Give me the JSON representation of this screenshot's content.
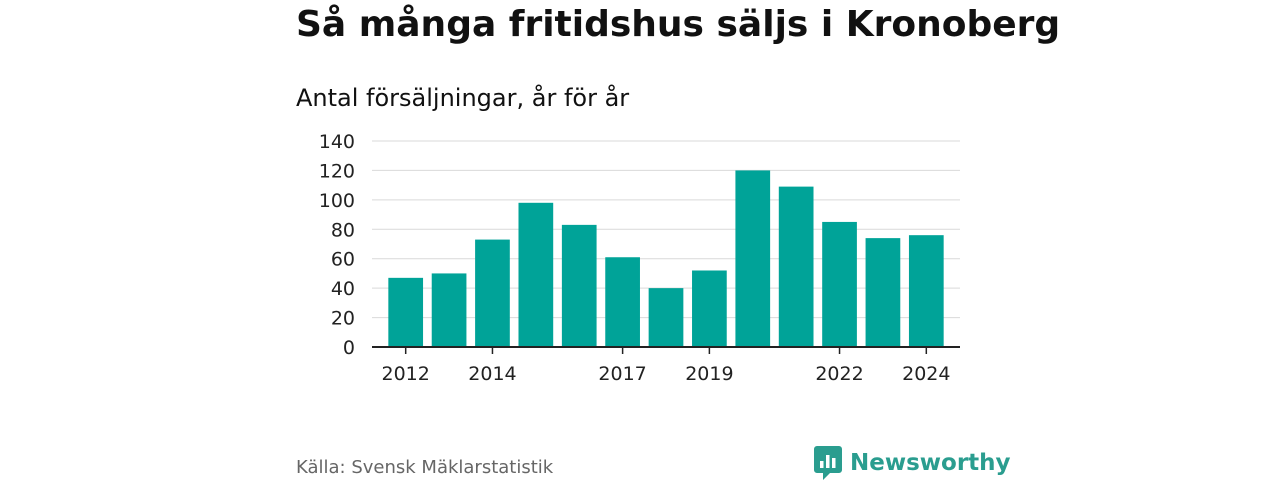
{
  "title": "Så många fritidshus säljs i Kronoberg",
  "chart_data": {
    "type": "bar",
    "title": "Så många fritidshus säljs i Kronoberg",
    "subtitle": "Antal försäljningar, år för år",
    "categories": [
      "2012",
      "2013",
      "2014",
      "2015",
      "2016",
      "2017",
      "2018",
      "2019",
      "2020",
      "2021",
      "2022",
      "2023",
      "2024"
    ],
    "x_tick_labels": [
      "2012",
      "2014",
      "2017",
      "2019",
      "2022",
      "2024"
    ],
    "values": [
      47,
      50,
      73,
      98,
      83,
      61,
      40,
      52,
      120,
      109,
      85,
      74,
      76
    ],
    "ylim": [
      0,
      140
    ],
    "y_ticks": [
      "0",
      "20",
      "40",
      "60",
      "80",
      "100",
      "120",
      "140"
    ],
    "xlabel": "",
    "ylabel": "",
    "grid": true,
    "bar_color": "#00a398"
  },
  "source": "Källa: Svensk Mäklarstatistik",
  "brand": {
    "name": "Newsworthy",
    "icon": "newsworthy-logo-icon",
    "color": "#2a9d8f"
  }
}
